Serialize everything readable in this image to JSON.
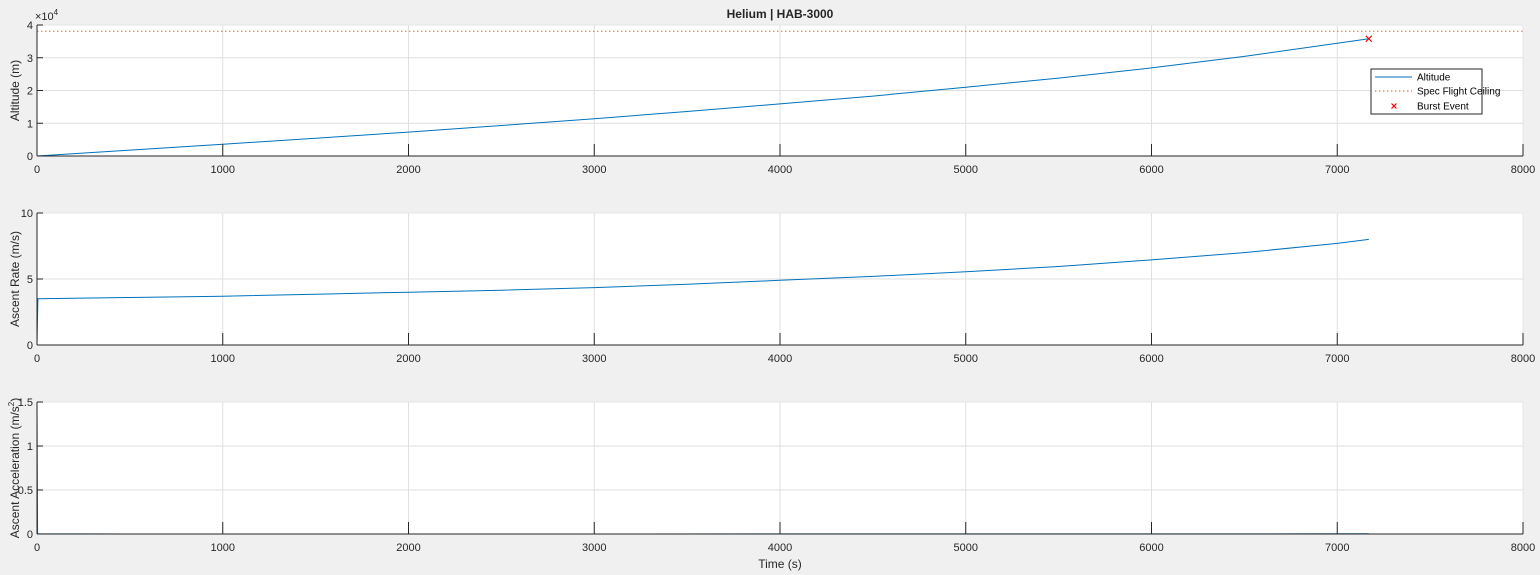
{
  "chart_data": [
    {
      "type": "line",
      "title": "Helium | HAB-3000",
      "ylabel": "Altitude (m)",
      "xlim": [
        0,
        8000
      ],
      "ylim": [
        0,
        40000
      ],
      "xticks": [
        0,
        1000,
        2000,
        3000,
        4000,
        5000,
        6000,
        7000,
        8000
      ],
      "xtick_labels": [
        "0",
        "1000",
        "2000",
        "3000",
        "4000",
        "5000",
        "6000",
        "7000",
        "8000"
      ],
      "yticks": [
        0,
        10000,
        20000,
        30000,
        40000
      ],
      "ytick_labels": [
        "0",
        "1",
        "2",
        "3",
        "4"
      ],
      "exponent_base": "×10",
      "exponent_power": "4",
      "grid": true,
      "legend_position": "right",
      "series": [
        {
          "name": "Altitude",
          "style": "solid",
          "color": "#0072bd",
          "x": [
            0,
            500,
            1000,
            1500,
            2000,
            2500,
            3000,
            3500,
            4000,
            4500,
            5000,
            5500,
            6000,
            6500,
            7000,
            7170
          ],
          "y": [
            0,
            1800,
            3600,
            5400,
            7300,
            9300,
            11400,
            13600,
            15900,
            18300,
            21000,
            23800,
            26900,
            30400,
            34400,
            35800
          ]
        },
        {
          "name": "Spec Flight Ceiling",
          "style": "dotted",
          "color": "#d95319",
          "x": [
            0,
            8000
          ],
          "y": [
            38100,
            38100
          ]
        },
        {
          "name": "Burst Event",
          "style": "marker",
          "color": "#ff0000",
          "x": [
            7170
          ],
          "y": [
            35800
          ]
        }
      ]
    },
    {
      "type": "line",
      "ylabel": "Ascent Rate (m/s)",
      "xlim": [
        0,
        8000
      ],
      "ylim": [
        0,
        10
      ],
      "xticks": [
        0,
        1000,
        2000,
        3000,
        4000,
        5000,
        6000,
        7000,
        8000
      ],
      "xtick_labels": [
        "0",
        "1000",
        "2000",
        "3000",
        "4000",
        "5000",
        "6000",
        "7000",
        "8000"
      ],
      "yticks": [
        0,
        5,
        10
      ],
      "ytick_labels": [
        "0",
        "5",
        "10"
      ],
      "grid": true,
      "series": [
        {
          "color": "#0072bd",
          "x": [
            0,
            5,
            500,
            1000,
            1500,
            2000,
            2500,
            3000,
            3500,
            4000,
            4500,
            5000,
            5500,
            6000,
            6500,
            7000,
            7170
          ],
          "y": [
            0,
            3.5,
            3.6,
            3.7,
            3.85,
            4.0,
            4.15,
            4.35,
            4.6,
            4.9,
            5.2,
            5.55,
            5.95,
            6.45,
            7.0,
            7.7,
            8.0
          ]
        }
      ]
    },
    {
      "type": "line",
      "ylabel": "Ascent Acceleration (m/s",
      "ylabel_sup": "2",
      "ylabel_end": ")",
      "xlabel": "Time (s)",
      "xlim": [
        0,
        8000
      ],
      "ylim": [
        0,
        1.5
      ],
      "xticks": [
        0,
        1000,
        2000,
        3000,
        4000,
        5000,
        6000,
        7000,
        8000
      ],
      "xtick_labels": [
        "0",
        "1000",
        "2000",
        "3000",
        "4000",
        "5000",
        "6000",
        "7000",
        "8000"
      ],
      "yticks": [
        0,
        0.5,
        1,
        1.5
      ],
      "ytick_labels": [
        "0",
        "0.5",
        "1",
        "1.5"
      ],
      "grid": true,
      "series": [
        {
          "color": "#0072bd",
          "x": [
            0,
            0,
            3,
            500,
            1000,
            2000,
            3000,
            4000,
            5000,
            6000,
            7000,
            7170
          ],
          "y": [
            0,
            1.5,
            0.002,
            0.0005,
            0.0005,
            0.0005,
            0.0005,
            0.001,
            0.001,
            0.001,
            0.002,
            0.002
          ]
        }
      ]
    }
  ]
}
